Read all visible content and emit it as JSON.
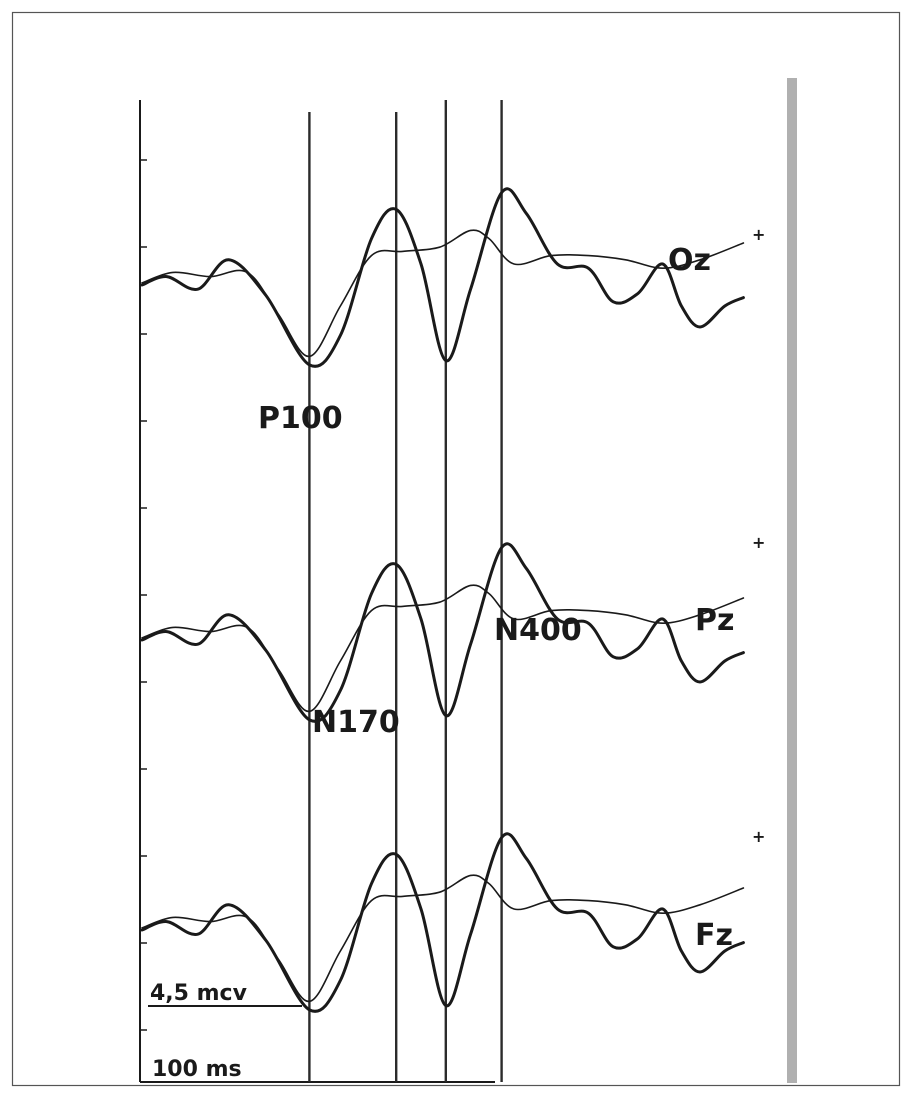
{
  "chart_data": {
    "type": "line",
    "time_unit": "ms",
    "channels": [
      {
        "name": "Oz",
        "marker": "+",
        "series": [
          {
            "style": "thick",
            "points": [
              [
                0,
                0
              ],
              [
                20,
                4
              ],
              [
                45,
                -2
              ],
              [
                70,
                12
              ],
              [
                100,
                -5
              ],
              [
                135,
                -38
              ],
              [
                160,
                -24
              ],
              [
                185,
                22
              ],
              [
                205,
                36
              ],
              [
                225,
                10
              ],
              [
                245,
                -36
              ],
              [
                265,
                -2
              ],
              [
                290,
                44
              ],
              [
                310,
                34
              ],
              [
                335,
                10
              ],
              [
                360,
                8
              ],
              [
                380,
                -8
              ],
              [
                400,
                -4
              ],
              [
                420,
                10
              ],
              [
                435,
                -10
              ],
              [
                450,
                -20
              ],
              [
                470,
                -10
              ],
              [
                485,
                -6
              ]
            ]
          },
          {
            "style": "thin",
            "points": [
              [
                0,
                1
              ],
              [
                25,
                6
              ],
              [
                55,
                4
              ],
              [
                85,
                6
              ],
              [
                110,
                -14
              ],
              [
                135,
                -34
              ],
              [
                160,
                -10
              ],
              [
                185,
                14
              ],
              [
                210,
                16
              ],
              [
                240,
                18
              ],
              [
                265,
                26
              ],
              [
                280,
                22
              ],
              [
                300,
                10
              ],
              [
                330,
                14
              ],
              [
                360,
                14
              ],
              [
                390,
                12
              ],
              [
                420,
                8
              ],
              [
                450,
                12
              ],
              [
                485,
                20
              ]
            ]
          }
        ]
      },
      {
        "name": "Pz",
        "marker": "+",
        "series": [
          {
            "style": "thick",
            "points": [
              [
                0,
                0
              ],
              [
                20,
                4
              ],
              [
                45,
                -2
              ],
              [
                70,
                12
              ],
              [
                100,
                -5
              ],
              [
                135,
                -38
              ],
              [
                160,
                -24
              ],
              [
                185,
                22
              ],
              [
                205,
                36
              ],
              [
                225,
                10
              ],
              [
                245,
                -36
              ],
              [
                265,
                -2
              ],
              [
                290,
                44
              ],
              [
                310,
                34
              ],
              [
                335,
                10
              ],
              [
                360,
                8
              ],
              [
                380,
                -8
              ],
              [
                400,
                -4
              ],
              [
                420,
                10
              ],
              [
                435,
                -10
              ],
              [
                450,
                -20
              ],
              [
                470,
                -10
              ],
              [
                485,
                -6
              ]
            ]
          },
          {
            "style": "thin",
            "points": [
              [
                0,
                1
              ],
              [
                25,
                6
              ],
              [
                55,
                4
              ],
              [
                85,
                6
              ],
              [
                110,
                -14
              ],
              [
                135,
                -34
              ],
              [
                160,
                -10
              ],
              [
                185,
                14
              ],
              [
                210,
                16
              ],
              [
                240,
                18
              ],
              [
                265,
                26
              ],
              [
                280,
                22
              ],
              [
                300,
                10
              ],
              [
                330,
                14
              ],
              [
                360,
                14
              ],
              [
                390,
                12
              ],
              [
                420,
                8
              ],
              [
                450,
                12
              ],
              [
                485,
                20
              ]
            ]
          }
        ]
      },
      {
        "name": "Fz",
        "marker": "+",
        "series": [
          {
            "style": "thick",
            "points": [
              [
                0,
                0
              ],
              [
                20,
                4
              ],
              [
                45,
                -2
              ],
              [
                70,
                12
              ],
              [
                100,
                -5
              ],
              [
                135,
                -38
              ],
              [
                160,
                -24
              ],
              [
                185,
                22
              ],
              [
                205,
                36
              ],
              [
                225,
                10
              ],
              [
                245,
                -36
              ],
              [
                265,
                -2
              ],
              [
                290,
                44
              ],
              [
                310,
                34
              ],
              [
                335,
                10
              ],
              [
                360,
                8
              ],
              [
                380,
                -8
              ],
              [
                400,
                -4
              ],
              [
                420,
                10
              ],
              [
                435,
                -10
              ],
              [
                450,
                -20
              ],
              [
                470,
                -10
              ],
              [
                485,
                -6
              ]
            ]
          },
          {
            "style": "thin",
            "points": [
              [
                0,
                1
              ],
              [
                25,
                6
              ],
              [
                55,
                4
              ],
              [
                85,
                6
              ],
              [
                110,
                -14
              ],
              [
                135,
                -34
              ],
              [
                160,
                -10
              ],
              [
                185,
                14
              ],
              [
                210,
                16
              ],
              [
                240,
                18
              ],
              [
                265,
                26
              ],
              [
                280,
                22
              ],
              [
                300,
                10
              ],
              [
                330,
                14
              ],
              [
                360,
                14
              ],
              [
                390,
                12
              ],
              [
                420,
                8
              ],
              [
                450,
                12
              ],
              [
                485,
                20
              ]
            ]
          }
        ]
      }
    ],
    "annotations": [
      {
        "text": "P100",
        "near_time": 135
      },
      {
        "text": "N170",
        "near_time": 205
      },
      {
        "text": "N400",
        "near_time": 290
      }
    ],
    "markers_ms": [
      135,
      205,
      245,
      290
    ],
    "scale_voltage": "4,5 mcv",
    "scale_time": "100 ms",
    "grid": false,
    "legend": "none",
    "colors": {
      "trace": "#1a1a1a",
      "marker_line": "#2b2b2b",
      "frame": "#555555",
      "right_bar": "#b0b0b0"
    }
  }
}
